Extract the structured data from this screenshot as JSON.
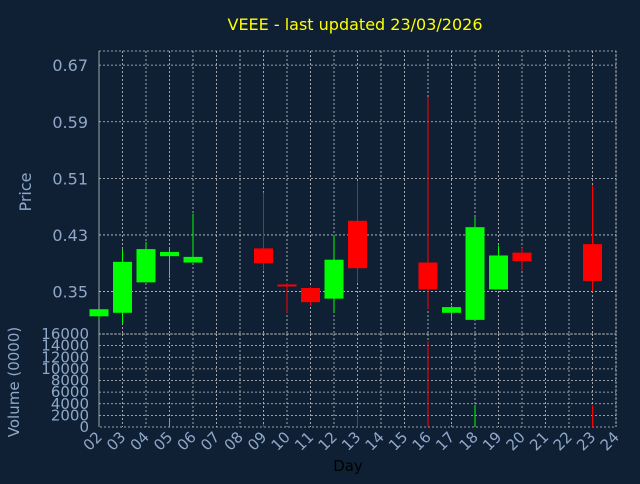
{
  "chart_data": {
    "type": "candlestick",
    "title": "VEEE - last updated 23/03/2026",
    "xlabel": "Day",
    "ylabel": "Price",
    "volume_label": "Volume (0000)",
    "price_ylim": [
      0.29,
      0.69
    ],
    "price_ticks": [
      0.35,
      0.43,
      0.51,
      0.59,
      0.67
    ],
    "volume_ylim": [
      0,
      16000
    ],
    "volume_ticks": [
      0,
      2000,
      4000,
      6000,
      8000,
      10000,
      12000,
      14000,
      16000
    ],
    "x_ticks": [
      "02",
      "03",
      "04",
      "05",
      "06",
      "07",
      "08",
      "09",
      "10",
      "11",
      "12",
      "13",
      "14",
      "15",
      "16",
      "17",
      "18",
      "19",
      "20",
      "21",
      "22",
      "23",
      "24"
    ],
    "grid": true,
    "colors": {
      "background": "#0f2035",
      "up": "#00ff00",
      "down": "#ff0000",
      "grid": "#c8c8c8",
      "title": "#ffff00",
      "axis_text": "#8fa8c8",
      "xlabel": "#000000"
    },
    "candles": [
      {
        "day": 2,
        "open": 0.315,
        "high": 0.325,
        "low": 0.31,
        "close": 0.325
      },
      {
        "day": 3,
        "open": 0.32,
        "high": 0.41,
        "low": 0.305,
        "close": 0.392
      },
      {
        "day": 4,
        "open": 0.363,
        "high": 0.42,
        "low": 0.363,
        "close": 0.41
      },
      {
        "day": 5,
        "open": 0.4,
        "high": 0.41,
        "low": 0.369,
        "close": 0.406
      },
      {
        "day": 6,
        "open": 0.391,
        "high": 0.46,
        "low": 0.391,
        "close": 0.399
      },
      {
        "day": 9,
        "open": 0.411,
        "high": 0.49,
        "low": 0.38,
        "close": 0.39
      },
      {
        "day": 10,
        "open": 0.36,
        "high": 0.362,
        "low": 0.32,
        "close": 0.358
      },
      {
        "day": 11,
        "open": 0.355,
        "high": 0.357,
        "low": 0.33,
        "close": 0.335
      },
      {
        "day": 12,
        "open": 0.34,
        "high": 0.43,
        "low": 0.32,
        "close": 0.395
      },
      {
        "day": 13,
        "open": 0.45,
        "high": 0.505,
        "low": 0.363,
        "close": 0.383
      },
      {
        "day": 16,
        "open": 0.391,
        "high": 0.625,
        "low": 0.325,
        "close": 0.353
      },
      {
        "day": 17,
        "open": 0.32,
        "high": 0.33,
        "low": 0.31,
        "close": 0.328
      },
      {
        "day": 18,
        "open": 0.31,
        "high": 0.455,
        "low": 0.31,
        "close": 0.441
      },
      {
        "day": 19,
        "open": 0.353,
        "high": 0.415,
        "low": 0.353,
        "close": 0.401
      },
      {
        "day": 20,
        "open": 0.405,
        "high": 0.412,
        "low": 0.38,
        "close": 0.393
      },
      {
        "day": 23,
        "open": 0.417,
        "high": 0.5,
        "low": 0.35,
        "close": 0.365
      }
    ],
    "volume": [
      {
        "day": 2,
        "value": 0,
        "dir": "up"
      },
      {
        "day": 3,
        "value": 0,
        "dir": "up"
      },
      {
        "day": 4,
        "value": 0,
        "dir": "up"
      },
      {
        "day": 5,
        "value": 1500,
        "dir": "up"
      },
      {
        "day": 6,
        "value": 0,
        "dir": "up"
      },
      {
        "day": 9,
        "value": 500,
        "dir": "down"
      },
      {
        "day": 10,
        "value": 0,
        "dir": "down"
      },
      {
        "day": 11,
        "value": 0,
        "dir": "down"
      },
      {
        "day": 12,
        "value": 0,
        "dir": "up"
      },
      {
        "day": 13,
        "value": 2600,
        "dir": "down"
      },
      {
        "day": 16,
        "value": 14800,
        "dir": "down"
      },
      {
        "day": 17,
        "value": 300,
        "dir": "up"
      },
      {
        "day": 18,
        "value": 3800,
        "dir": "up"
      },
      {
        "day": 19,
        "value": 0,
        "dir": "up"
      },
      {
        "day": 20,
        "value": 0,
        "dir": "down"
      },
      {
        "day": 23,
        "value": 3700,
        "dir": "down"
      }
    ]
  }
}
